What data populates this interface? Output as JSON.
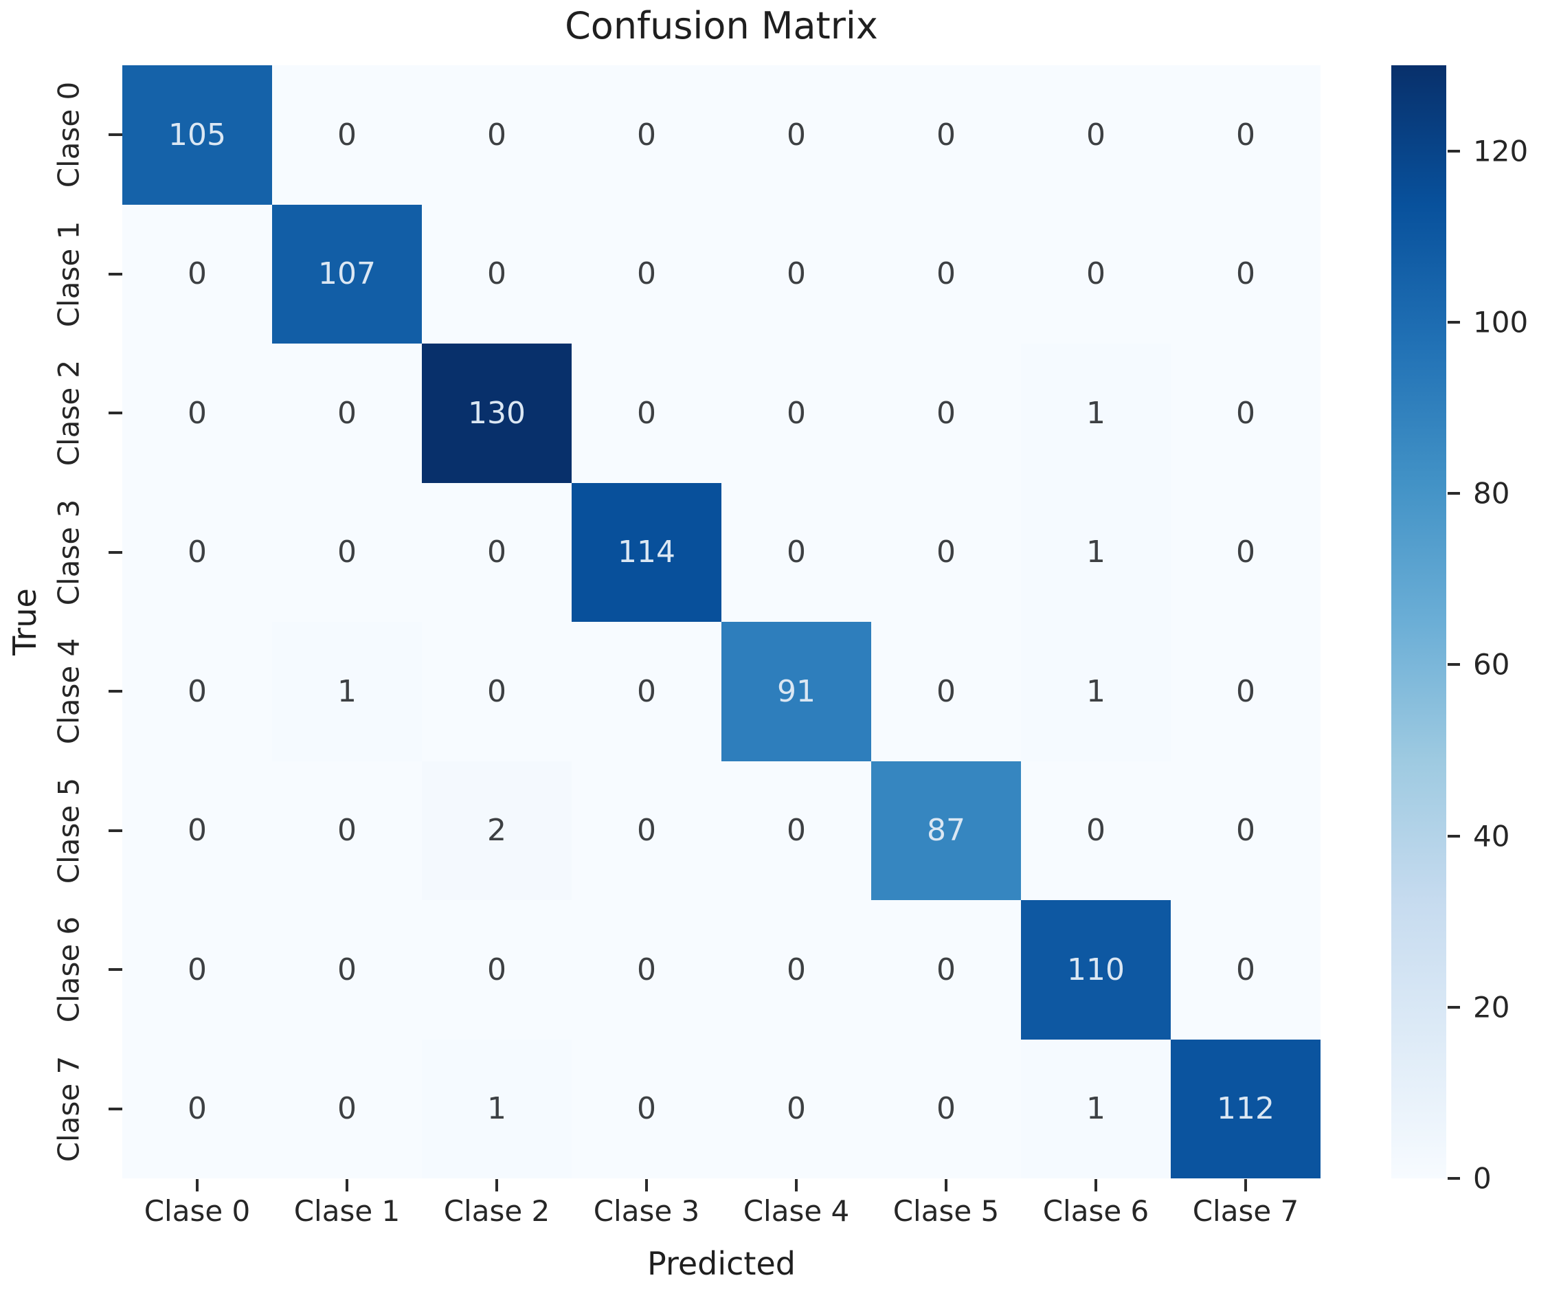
{
  "figure": {
    "title": "Confusion Matrix",
    "xlabel": "Predicted",
    "ylabel": "True"
  },
  "chart_data": {
    "type": "heatmap",
    "title": "Confusion Matrix",
    "xlabel": "Predicted",
    "ylabel": "True",
    "x_categories": [
      "Clase 0",
      "Clase 1",
      "Clase 2",
      "Clase 3",
      "Clase 4",
      "Clase 5",
      "Clase 6",
      "Clase 7"
    ],
    "y_categories": [
      "Clase 0",
      "Clase 1",
      "Clase 2",
      "Clase 3",
      "Clase 4",
      "Clase 5",
      "Clase 6",
      "Clase 7"
    ],
    "matrix": [
      [
        105,
        0,
        0,
        0,
        0,
        0,
        0,
        0
      ],
      [
        0,
        107,
        0,
        0,
        0,
        0,
        0,
        0
      ],
      [
        0,
        0,
        130,
        0,
        0,
        0,
        1,
        0
      ],
      [
        0,
        0,
        0,
        114,
        0,
        0,
        1,
        0
      ],
      [
        0,
        1,
        0,
        0,
        91,
        0,
        1,
        0
      ],
      [
        0,
        0,
        2,
        0,
        0,
        87,
        0,
        0
      ],
      [
        0,
        0,
        0,
        0,
        0,
        0,
        110,
        0
      ],
      [
        0,
        0,
        1,
        0,
        0,
        0,
        1,
        112
      ]
    ],
    "vmin": 0,
    "vmax": 130,
    "colormap": "Blues",
    "colormap_anchors": [
      "#f7fbff",
      "#deebf7",
      "#c6dbef",
      "#9ecae1",
      "#6baed6",
      "#4292c6",
      "#2171b5",
      "#08519c",
      "#08306b"
    ],
    "colorbar_ticks": [
      0,
      20,
      40,
      60,
      80,
      100,
      120
    ],
    "colorbar_position": "right",
    "grid": false,
    "annotated": true,
    "annotation_light_color": "#dbe7f3",
    "annotation_dark_color": "#3d4043"
  }
}
